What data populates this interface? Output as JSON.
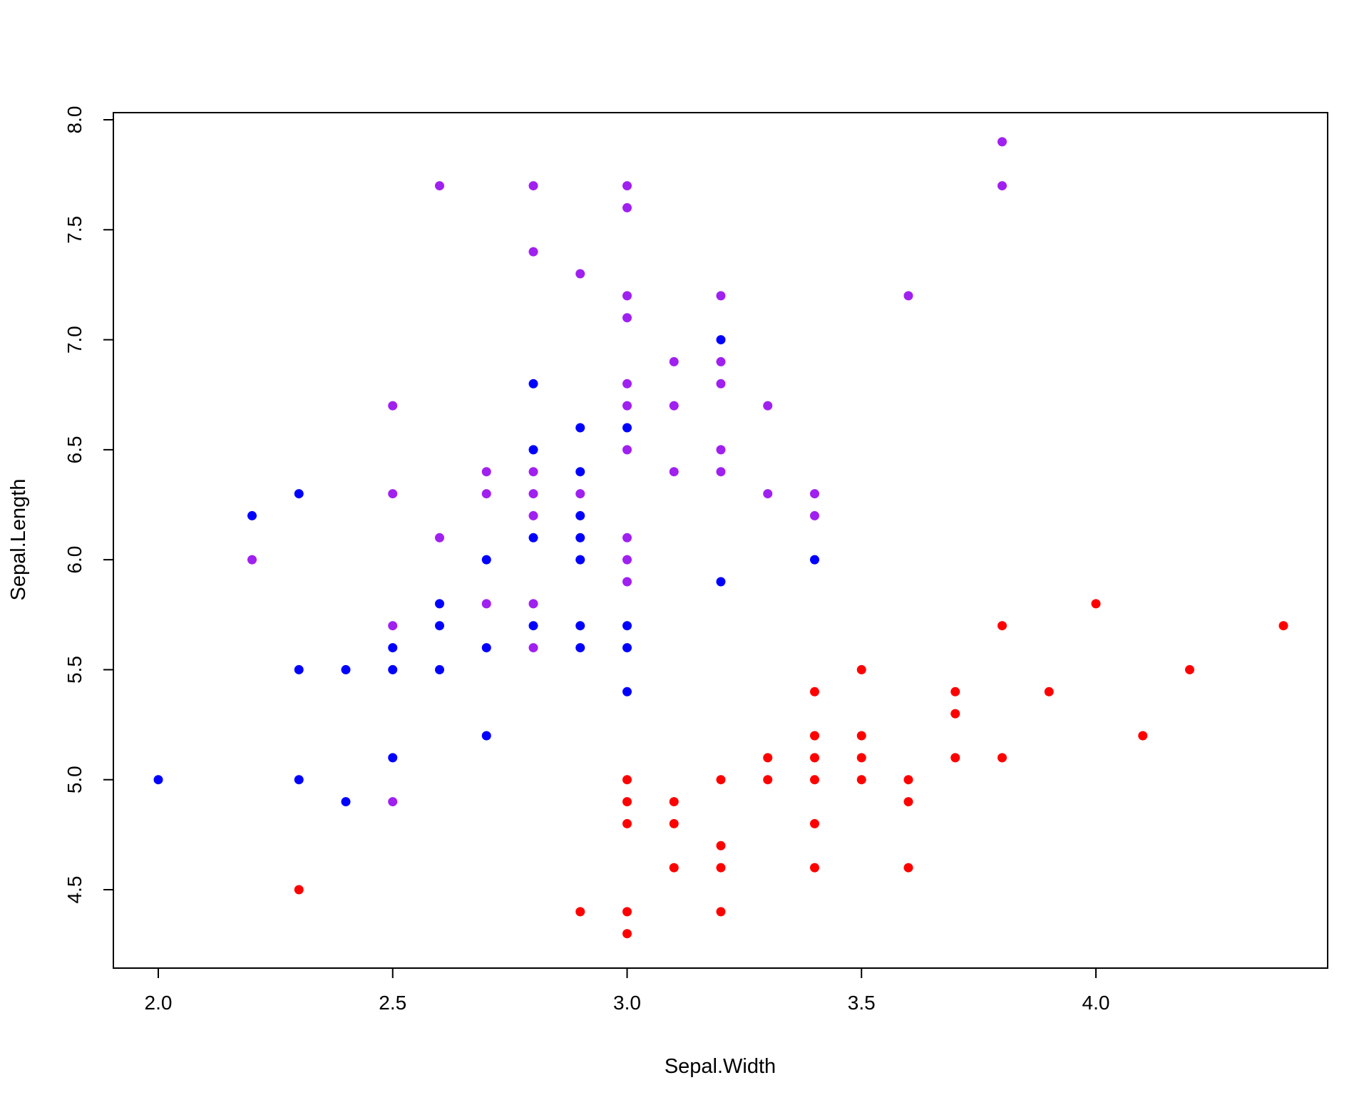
{
  "chart_data": {
    "type": "scatter",
    "title": "",
    "xlabel": "Sepal.Width",
    "ylabel": "Sepal.Length",
    "xlim": [
      1.9,
      4.5
    ],
    "ylim": [
      4.2,
      8.05
    ],
    "grid": false,
    "xticks": [
      2.0,
      2.5,
      3.0,
      3.5,
      4.0
    ],
    "xtick_labels": [
      "2.0",
      "2.5",
      "3.0",
      "3.5",
      "4.0"
    ],
    "yticks": [
      4.5,
      5.0,
      5.5,
      6.0,
      6.5,
      7.0,
      7.5,
      8.0
    ],
    "ytick_labels": [
      "4.5",
      "5.0",
      "5.5",
      "6.0",
      "6.5",
      "7.0",
      "7.5",
      "8.0"
    ],
    "series": [
      {
        "color": "#FF0000",
        "points": [
          [
            2.3,
            4.5
          ],
          [
            2.9,
            4.4
          ],
          [
            3.0,
            4.4
          ],
          [
            3.0,
            4.3
          ],
          [
            3.0,
            5.0
          ],
          [
            3.0,
            4.9
          ],
          [
            3.0,
            4.8
          ],
          [
            3.1,
            4.9
          ],
          [
            3.1,
            4.8
          ],
          [
            3.1,
            4.6
          ],
          [
            3.2,
            5.0
          ],
          [
            3.2,
            4.7
          ],
          [
            3.2,
            4.6
          ],
          [
            3.2,
            4.4
          ],
          [
            3.3,
            5.1
          ],
          [
            3.3,
            5.0
          ],
          [
            3.4,
            5.4
          ],
          [
            3.4,
            5.2
          ],
          [
            3.4,
            5.1
          ],
          [
            3.4,
            5.0
          ],
          [
            3.4,
            4.8
          ],
          [
            3.4,
            4.6
          ],
          [
            3.5,
            5.5
          ],
          [
            3.5,
            5.2
          ],
          [
            3.5,
            5.1
          ],
          [
            3.5,
            5.0
          ],
          [
            3.6,
            5.0
          ],
          [
            3.6,
            4.9
          ],
          [
            3.6,
            4.6
          ],
          [
            3.7,
            5.4
          ],
          [
            3.7,
            5.3
          ],
          [
            3.7,
            5.1
          ],
          [
            3.8,
            5.7
          ],
          [
            3.8,
            5.1
          ],
          [
            3.9,
            5.4
          ],
          [
            4.0,
            5.8
          ],
          [
            4.1,
            5.2
          ],
          [
            4.2,
            5.5
          ],
          [
            4.4,
            5.7
          ]
        ]
      },
      {
        "color": "#0000FF",
        "points": [
          [
            2.0,
            5.0
          ],
          [
            2.2,
            6.2
          ],
          [
            2.3,
            6.3
          ],
          [
            2.3,
            5.5
          ],
          [
            2.3,
            5.0
          ],
          [
            2.4,
            5.5
          ],
          [
            2.4,
            4.9
          ],
          [
            2.5,
            5.6
          ],
          [
            2.5,
            5.5
          ],
          [
            2.5,
            5.1
          ],
          [
            2.6,
            5.8
          ],
          [
            2.6,
            5.7
          ],
          [
            2.6,
            5.5
          ],
          [
            2.7,
            6.0
          ],
          [
            2.7,
            5.6
          ],
          [
            2.7,
            5.2
          ],
          [
            2.8,
            6.8
          ],
          [
            2.8,
            6.5
          ],
          [
            2.8,
            6.1
          ],
          [
            2.8,
            5.7
          ],
          [
            2.9,
            6.6
          ],
          [
            2.9,
            6.4
          ],
          [
            2.9,
            6.2
          ],
          [
            2.9,
            6.1
          ],
          [
            2.9,
            6.0
          ],
          [
            2.9,
            5.7
          ],
          [
            2.9,
            5.6
          ],
          [
            3.0,
            6.6
          ],
          [
            3.0,
            5.7
          ],
          [
            3.0,
            5.6
          ],
          [
            3.0,
            5.4
          ],
          [
            3.2,
            7.0
          ],
          [
            3.2,
            5.9
          ],
          [
            3.4,
            6.0
          ]
        ]
      },
      {
        "color": "#A020F0",
        "points": [
          [
            2.2,
            6.0
          ],
          [
            2.5,
            6.7
          ],
          [
            2.5,
            6.3
          ],
          [
            2.5,
            5.7
          ],
          [
            2.5,
            4.9
          ],
          [
            2.6,
            7.7
          ],
          [
            2.6,
            6.1
          ],
          [
            2.7,
            6.4
          ],
          [
            2.7,
            6.3
          ],
          [
            2.7,
            5.8
          ],
          [
            2.8,
            7.7
          ],
          [
            2.8,
            7.4
          ],
          [
            2.8,
            6.4
          ],
          [
            2.8,
            6.3
          ],
          [
            2.8,
            6.2
          ],
          [
            2.8,
            5.8
          ],
          [
            2.8,
            5.6
          ],
          [
            2.9,
            7.3
          ],
          [
            2.9,
            6.3
          ],
          [
            3.0,
            7.7
          ],
          [
            3.0,
            7.6
          ],
          [
            3.0,
            7.2
          ],
          [
            3.0,
            7.1
          ],
          [
            3.0,
            6.8
          ],
          [
            3.0,
            6.7
          ],
          [
            3.0,
            6.5
          ],
          [
            3.0,
            6.1
          ],
          [
            3.0,
            6.0
          ],
          [
            3.0,
            5.9
          ],
          [
            3.1,
            6.9
          ],
          [
            3.1,
            6.7
          ],
          [
            3.1,
            6.4
          ],
          [
            3.2,
            7.2
          ],
          [
            3.2,
            6.9
          ],
          [
            3.2,
            6.8
          ],
          [
            3.2,
            6.5
          ],
          [
            3.2,
            6.4
          ],
          [
            3.3,
            6.7
          ],
          [
            3.3,
            6.3
          ],
          [
            3.4,
            6.3
          ],
          [
            3.4,
            6.2
          ],
          [
            3.6,
            7.2
          ],
          [
            3.8,
            7.9
          ],
          [
            3.8,
            7.7
          ]
        ]
      }
    ]
  }
}
